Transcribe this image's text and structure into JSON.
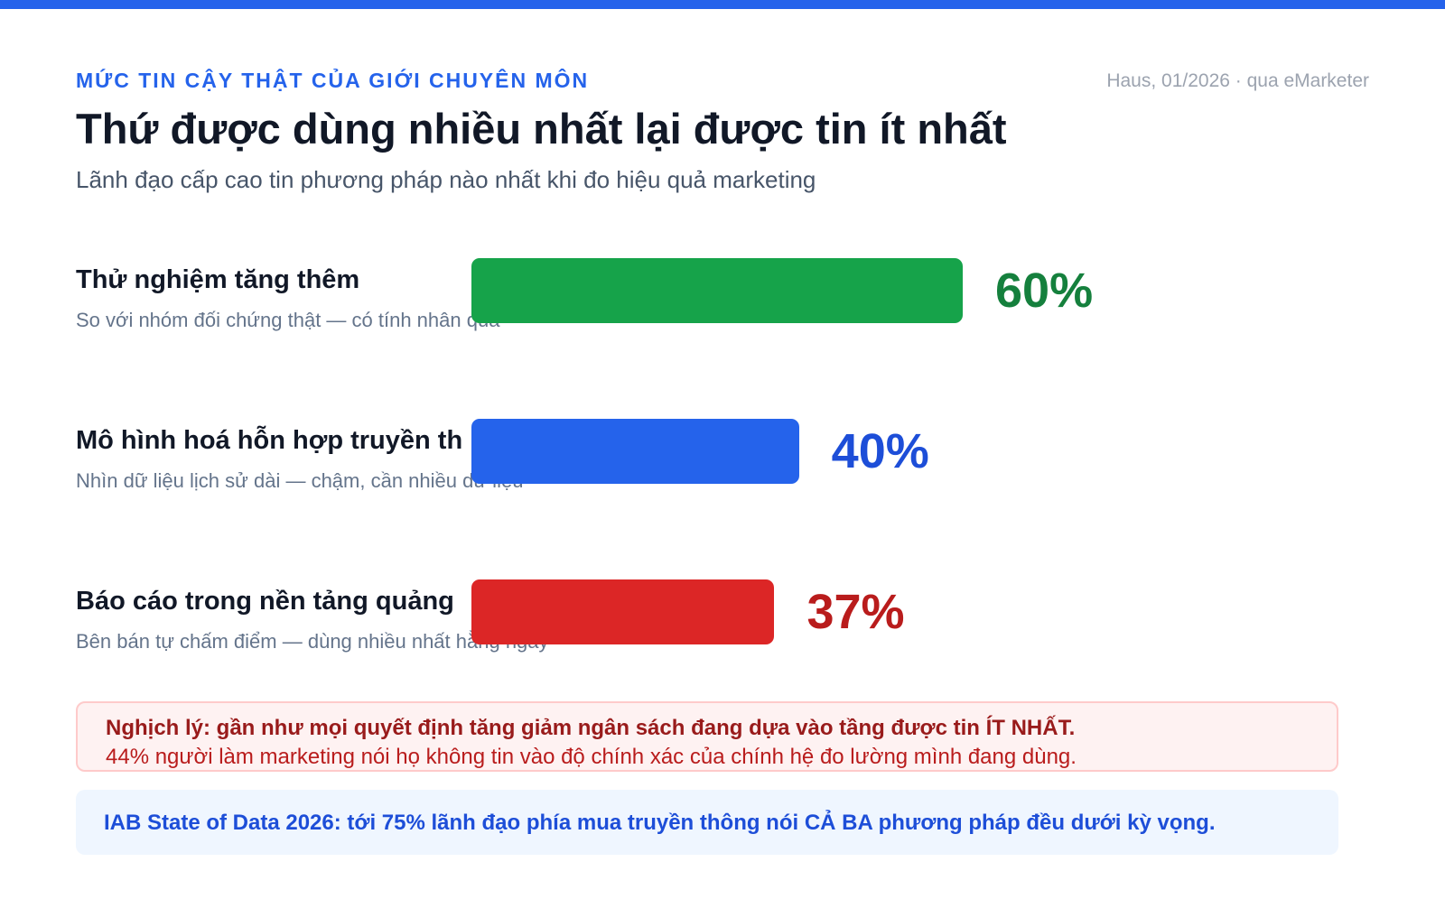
{
  "header": {
    "kicker": "MỨC TIN CẬY THẬT CỦA GIỚI CHUYÊN MÔN",
    "source": "Haus, 01/2026 · qua eMarketer",
    "title": "Thứ được dùng nhiều nhất lại được tin ít nhất",
    "subtitle": "Lãnh đạo cấp cao tin phương pháp nào nhất khi đo hiệu quả marketing"
  },
  "chart_data": {
    "type": "bar",
    "orientation": "horizontal",
    "categories": [
      "Thử nghiệm tăng thêm",
      "Mô hình hoá hỗn hợp truyền th",
      "Báo cáo trong nền tảng quảng"
    ],
    "sublabels": [
      "So với nhóm đối chứng thật — có tính nhân quả",
      "Nhìn dữ liệu lịch sử dài — chậm, cần nhiều dữ liệu",
      "Bên bán tự chấm điểm — dùng nhiều nhất hằng ngày"
    ],
    "values": [
      60,
      40,
      37
    ],
    "value_labels": [
      "60%",
      "40%",
      "37%"
    ],
    "bar_colors": [
      "#16a34a",
      "#2563eb",
      "#dc2626"
    ],
    "value_colors": [
      "#15803d",
      "#1d4ed8",
      "#b91c1c"
    ],
    "xlim": [
      0,
      100
    ]
  },
  "callouts": {
    "paradox_title": "Nghịch lý: gần như mọi quyết định tăng giảm ngân sách đang dựa vào tầng được tin ÍT NHẤT.",
    "paradox_body": "44% người làm marketing nói họ không tin vào độ chính xác của chính hệ đo lường mình đang dùng.",
    "iab_note": "IAB State of Data 2026: tới 75% lãnh đạo phía mua truyền thông nói CẢ BA phương pháp đều dưới kỳ vọng."
  }
}
